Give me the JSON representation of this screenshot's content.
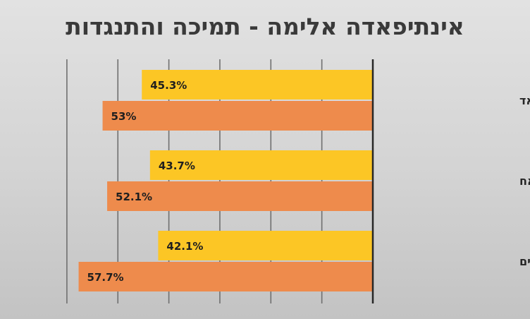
{
  "chart_data": {
    "type": "bar",
    "orientation": "horizontal",
    "direction": "right-to-left",
    "title": "אינתיפאדה אלימה - תמיכה והתנגדות",
    "categories": [
      "אווראד",
      "א-נג'אח",
      "המרכז הפלסטיני לסקרים"
    ],
    "series": [
      {
        "values": [
          45.3,
          43.7,
          42.1
        ],
        "labels": [
          "45.3%",
          "43.7%",
          "42.1%"
        ],
        "color": "#fcc625"
      },
      {
        "values": [
          53,
          52.1,
          57.7
        ],
        "labels": [
          "53%",
          "52.1%",
          "57.7%"
        ],
        "color": "#ee8b4c"
      }
    ],
    "xlim": [
      0,
      60
    ],
    "gridlines": true,
    "legend": "none"
  }
}
